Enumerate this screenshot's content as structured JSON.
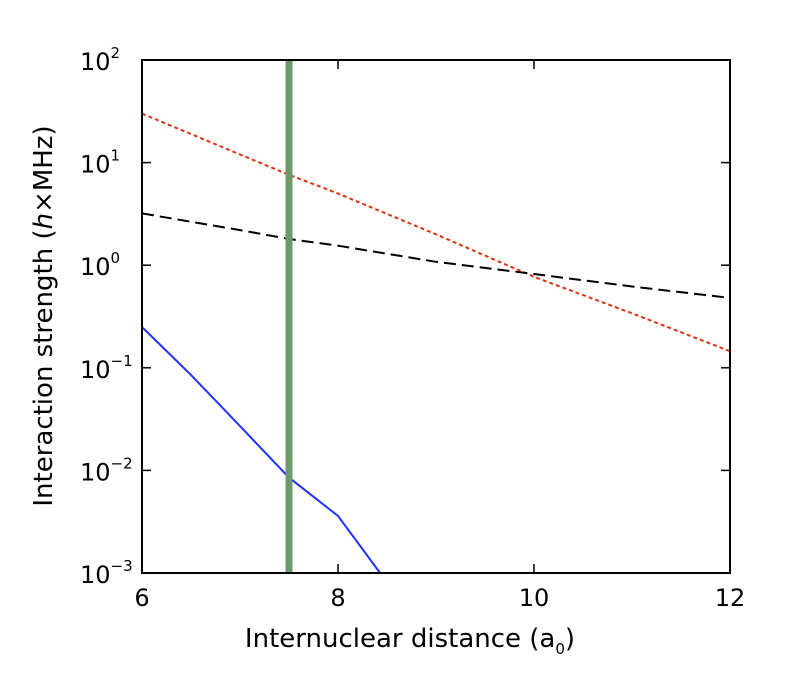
{
  "chart_data": {
    "type": "line",
    "xlabel": "Internuclear distance (a",
    "xlabel_sub": "0",
    "xlabel_end": ")",
    "ylabel_pre": "Interaction strength (",
    "ylabel_h": "h",
    "ylabel_post": "×MHz)",
    "xlim": [
      6,
      12
    ],
    "ylim": [
      0.001,
      100
    ],
    "yscale": "log",
    "grid": false,
    "legend": "none",
    "xticks": [
      {
        "value": 6,
        "label": "6"
      },
      {
        "value": 8,
        "label": "8"
      },
      {
        "value": 10,
        "label": "10"
      },
      {
        "value": 12,
        "label": "12"
      }
    ],
    "yticks": [
      {
        "value": 0.001,
        "base": "10",
        "exp": "−3"
      },
      {
        "value": 0.01,
        "base": "10",
        "exp": "−2"
      },
      {
        "value": 0.1,
        "base": "10",
        "exp": "−1"
      },
      {
        "value": 1,
        "base": "10",
        "exp": "0"
      },
      {
        "value": 10,
        "base": "10",
        "exp": "1"
      },
      {
        "value": 100,
        "base": "10",
        "exp": "2"
      }
    ],
    "vline": {
      "x": 7.5,
      "color": "#6b9a6b"
    },
    "series": [
      {
        "style": "dotted-red",
        "color": "#dd3311",
        "x": [
          6,
          7,
          7.5,
          8,
          9,
          10,
          11,
          12
        ],
        "y": [
          30,
          12,
          7.6,
          5.0,
          2.0,
          0.77,
          0.34,
          0.145
        ]
      },
      {
        "style": "dashed-black",
        "color": "#000000",
        "x": [
          6,
          7,
          7.5,
          8,
          9,
          10,
          11,
          12
        ],
        "y": [
          3.2,
          2.2,
          1.8,
          1.55,
          1.08,
          0.82,
          0.62,
          0.48
        ]
      },
      {
        "style": "solid-blue",
        "color": "#1f33ff",
        "x": [
          6,
          6.5,
          7,
          7.5,
          8,
          8.43
        ],
        "y": [
          0.25,
          0.085,
          0.027,
          0.0085,
          0.0036,
          0.001
        ]
      }
    ]
  }
}
